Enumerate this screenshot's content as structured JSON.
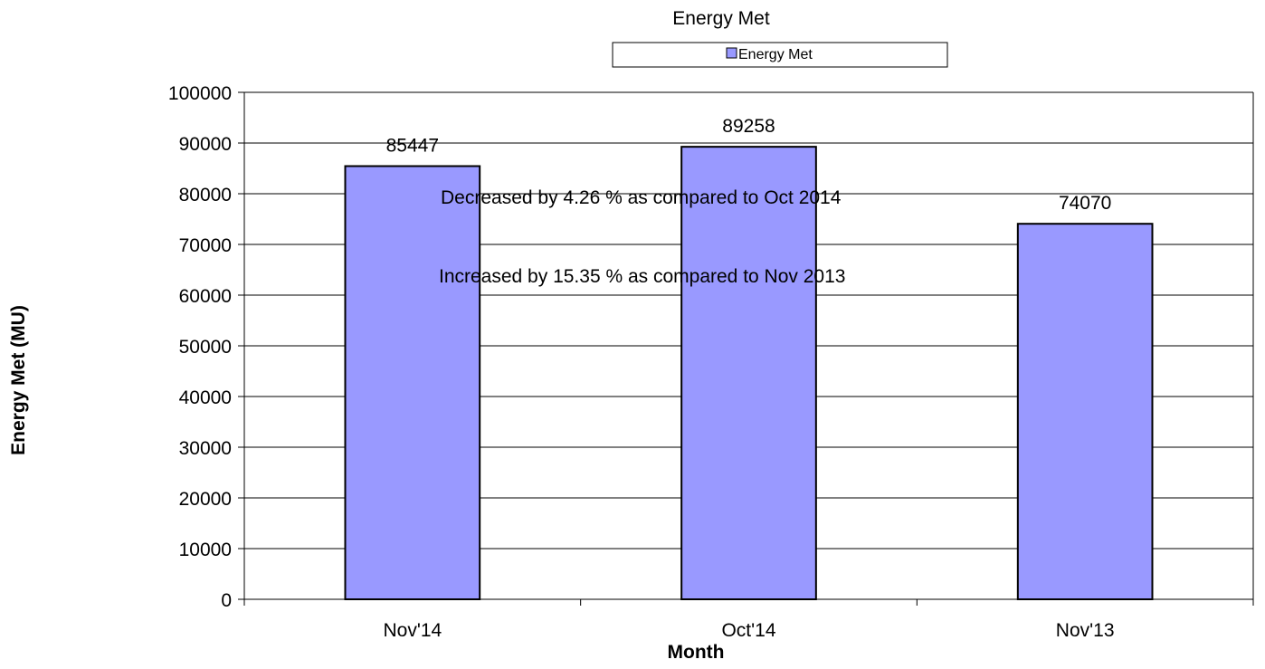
{
  "chart_data": {
    "type": "bar",
    "title": "Energy Met",
    "xlabel": "Month",
    "ylabel": "Energy Met (MU)",
    "categories": [
      "Nov'14",
      "Oct'14",
      "Nov'13"
    ],
    "series": [
      {
        "name": "Energy Met",
        "values": [
          85447,
          89258,
          74070
        ],
        "color": "#9999ff"
      }
    ],
    "data_labels": [
      "85447",
      "89258",
      "74070"
    ],
    "ylim": [
      0,
      100000
    ],
    "yticks": [
      0,
      10000,
      20000,
      30000,
      40000,
      50000,
      60000,
      70000,
      80000,
      90000,
      100000
    ],
    "ytick_labels": [
      "0",
      "10000",
      "20000",
      "30000",
      "40000",
      "50000",
      "60000",
      "70000",
      "80000",
      "90000",
      "100000"
    ],
    "grid": true,
    "legend": {
      "position": "top-center",
      "entries": [
        "Energy Met"
      ]
    },
    "annotations": [
      "Decreased by 4.26 %  as compared to Oct 2014",
      "Increased by  15.35 % as compared to Nov 2013"
    ]
  }
}
